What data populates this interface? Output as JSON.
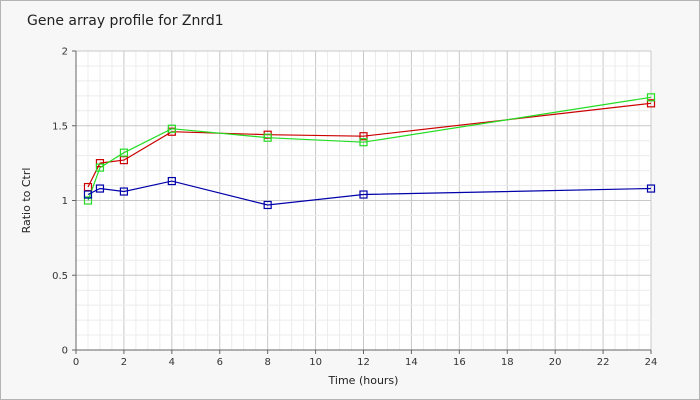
{
  "chart_data": {
    "type": "line",
    "title": "Gene array profile for Znrd1",
    "xlabel": "Time (hours)",
    "ylabel": "Ratio to Ctrl",
    "xlim": [
      0,
      24
    ],
    "ylim": [
      0,
      2
    ],
    "x_ticks": [
      "0",
      "2",
      "4",
      "6",
      "8",
      "10",
      "12",
      "14",
      "16",
      "18",
      "20",
      "22",
      "24"
    ],
    "y_ticks": [
      "0",
      "0.5",
      "1",
      "1.5",
      "2"
    ],
    "grid": true,
    "marker": "square",
    "series": [
      {
        "color": "#cc0000",
        "x": [
          0.5,
          1,
          2,
          4,
          8,
          12,
          24
        ],
        "values": [
          1.09,
          1.25,
          1.27,
          1.46,
          1.44,
          1.43,
          1.65
        ]
      },
      {
        "color": "#22dd22",
        "x": [
          0.5,
          1,
          2,
          4,
          8,
          12,
          24
        ],
        "values": [
          1.0,
          1.22,
          1.32,
          1.48,
          1.42,
          1.39,
          1.69
        ]
      },
      {
        "color": "#0000aa",
        "x": [
          0.5,
          1,
          2,
          4,
          8,
          12,
          24
        ],
        "values": [
          1.04,
          1.08,
          1.06,
          1.13,
          0.97,
          1.04,
          1.08
        ]
      }
    ]
  }
}
